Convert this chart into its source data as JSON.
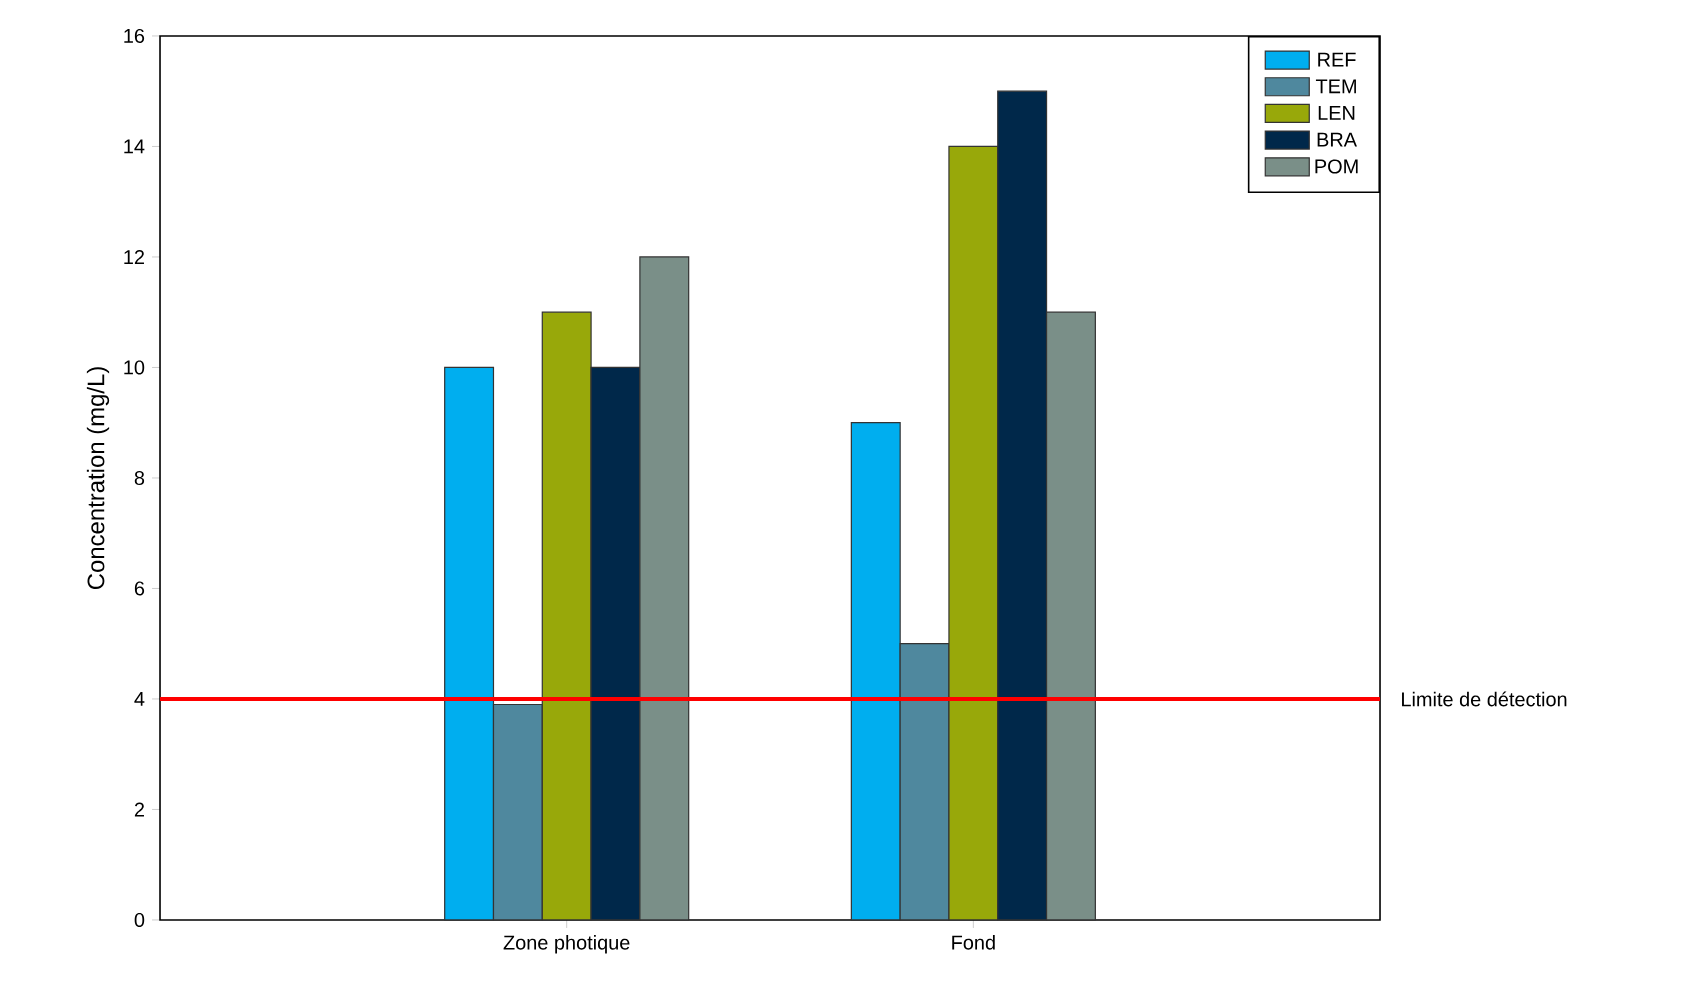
{
  "chart_data": {
    "type": "bar",
    "categories": [
      "Zone photique",
      "Fond"
    ],
    "ylabel": "Concentration (mg/L)",
    "series": [
      {
        "name": "REF",
        "color": "#00aeef",
        "values": [
          10,
          9
        ]
      },
      {
        "name": "TEM",
        "color": "#4f889e",
        "values": [
          3.9,
          5
        ]
      },
      {
        "name": "LEN",
        "color": "#98a80a",
        "values": [
          11,
          14
        ]
      },
      {
        "name": "BRA",
        "color": "#00284a",
        "values": [
          10,
          15
        ]
      },
      {
        "name": "POM",
        "color": "#7a8f88",
        "values": [
          12,
          11
        ]
      }
    ],
    "ylim": [
      0,
      16
    ],
    "yticks": [
      0,
      2,
      4,
      6,
      8,
      10,
      12,
      14,
      16
    ],
    "ref_lines": [
      {
        "axis": "y",
        "value": 4,
        "label": "Limite de détection",
        "color": "#ff0000"
      }
    ],
    "legend": "top right",
    "grid": false
  }
}
